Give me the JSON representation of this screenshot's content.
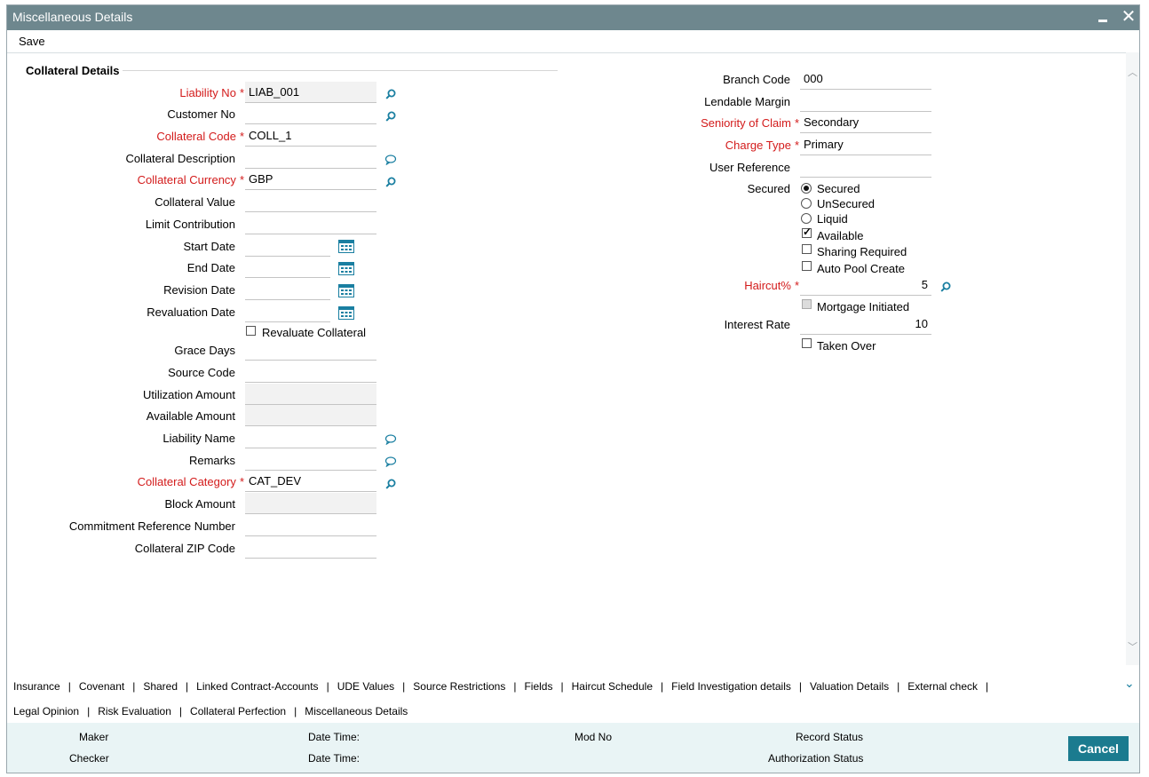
{
  "window": {
    "title": "Miscellaneous Details",
    "close_glyph": "✕"
  },
  "toolbar": {
    "save_label": "Save"
  },
  "section": {
    "title": "Collateral Details"
  },
  "left": {
    "liability_no": {
      "label": "Liability No",
      "value": "LIAB_001"
    },
    "customer_no": {
      "label": "Customer No",
      "value": ""
    },
    "collateral_code": {
      "label": "Collateral Code",
      "value": "COLL_1"
    },
    "collateral_description": {
      "label": "Collateral Description",
      "value": ""
    },
    "collateral_currency": {
      "label": "Collateral Currency",
      "value": "GBP"
    },
    "collateral_value": {
      "label": "Collateral Value",
      "value": ""
    },
    "limit_contribution": {
      "label": "Limit Contribution",
      "value": ""
    },
    "start_date": {
      "label": "Start Date",
      "value": ""
    },
    "end_date": {
      "label": "End Date",
      "value": ""
    },
    "revision_date": {
      "label": "Revision Date",
      "value": ""
    },
    "revaluation_date": {
      "label": "Revaluation Date",
      "value": ""
    },
    "revaluate_collateral": {
      "label": "Revaluate Collateral",
      "checked": false
    },
    "grace_days": {
      "label": "Grace Days",
      "value": ""
    },
    "source_code": {
      "label": "Source Code",
      "value": ""
    },
    "utilization_amount": {
      "label": "Utilization Amount",
      "value": ""
    },
    "available_amount": {
      "label": "Available Amount",
      "value": ""
    },
    "liability_name": {
      "label": "Liability Name",
      "value": ""
    },
    "remarks": {
      "label": "Remarks",
      "value": ""
    },
    "collateral_category": {
      "label": "Collateral Category",
      "value": "CAT_DEV"
    },
    "block_amount": {
      "label": "Block Amount",
      "value": ""
    },
    "commitment_reference_number": {
      "label": "Commitment Reference Number",
      "value": ""
    },
    "collateral_zip_code": {
      "label": "Collateral ZIP Code",
      "value": ""
    }
  },
  "right": {
    "branch_code": {
      "label": "Branch Code",
      "value": "000"
    },
    "lendable_margin": {
      "label": "Lendable Margin",
      "value": ""
    },
    "seniority_of_claim": {
      "label": "Seniority of Claim",
      "value": "Secondary"
    },
    "charge_type": {
      "label": "Charge Type",
      "value": "Primary"
    },
    "user_reference": {
      "label": "User Reference",
      "value": ""
    },
    "secured": {
      "label": "Secured",
      "options": [
        "Secured",
        "UnSecured",
        "Liquid"
      ],
      "selected": "Secured"
    },
    "available": {
      "label": "Available",
      "checked": true
    },
    "sharing_required": {
      "label": "Sharing Required",
      "checked": false
    },
    "auto_pool_create": {
      "label": "Auto Pool Create",
      "checked": false
    },
    "haircut": {
      "label": "Haircut%",
      "value": "5"
    },
    "mortgage_initiated": {
      "label": "Mortgage Initiated",
      "checked": false,
      "disabled": true
    },
    "interest_rate": {
      "label": "Interest Rate",
      "value": "10"
    },
    "taken_over": {
      "label": "Taken Over",
      "checked": false
    }
  },
  "required_star": "*",
  "tabs": {
    "row1": [
      "Insurance",
      "Covenant",
      "Shared",
      "Linked Contract-Accounts",
      "UDE Values",
      "Source Restrictions",
      "Fields",
      "Haircut Schedule",
      "Field Investigation details",
      "Valuation Details",
      "External check"
    ],
    "row2": [
      "Legal Opinion",
      "Risk Evaluation",
      "Collateral Perfection",
      "Miscellaneous Details"
    ],
    "separator": "|"
  },
  "footer": {
    "maker": "Maker",
    "checker": "Checker",
    "date_time_1": "Date Time:",
    "date_time_2": "Date Time:",
    "mod_no": "Mod No",
    "record_status": "Record Status",
    "authorization_status": "Authorization Status",
    "cancel_label": "Cancel"
  },
  "colors": {
    "titlebar": "#6e878e",
    "required": "#d31b1b",
    "accent": "#1b7b8f",
    "footer": "#e9f4f5"
  },
  "icons": {
    "lookup": "magnifier-icon",
    "bubble": "speech-bubble-icon",
    "calendar": "calendar-icon"
  }
}
